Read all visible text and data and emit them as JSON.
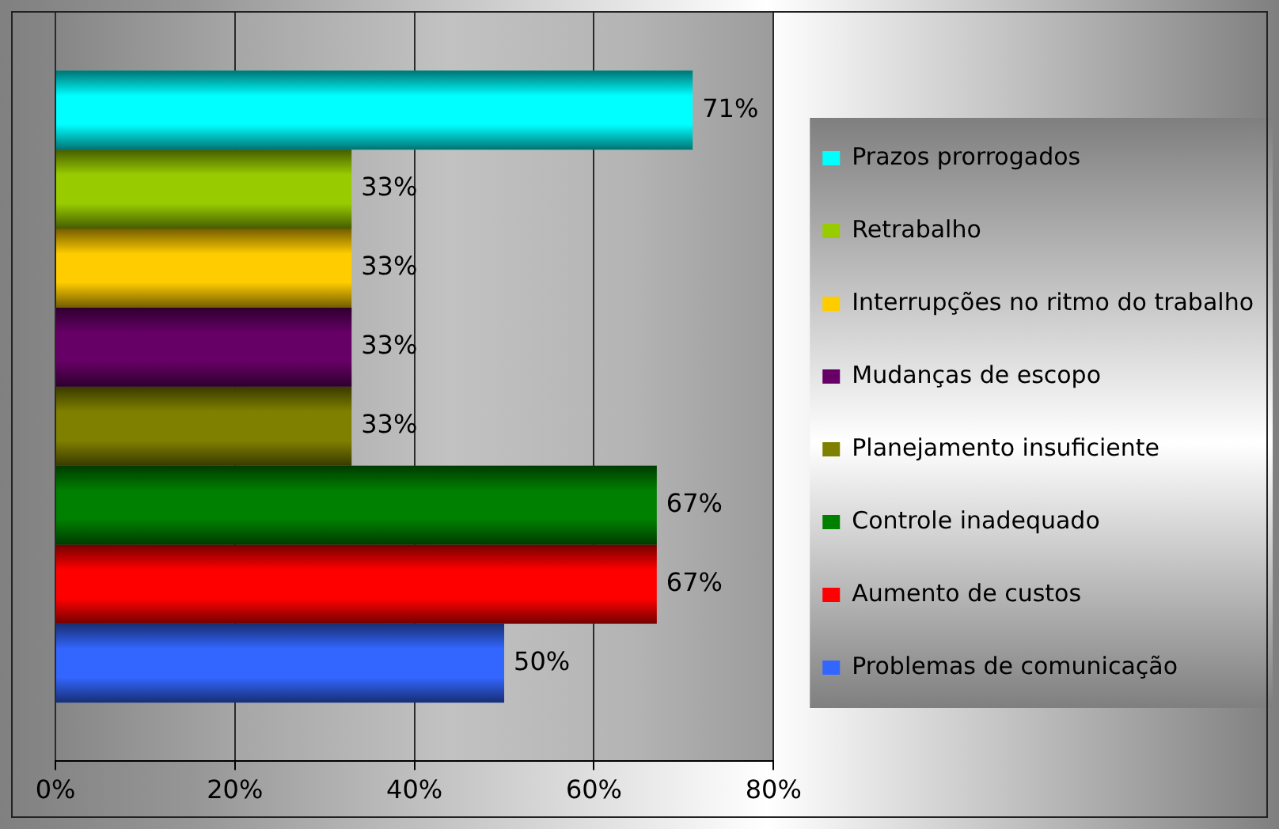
{
  "chart_data": {
    "type": "bar",
    "orientation": "horizontal",
    "categories": [
      null
    ],
    "series": [
      {
        "name": "Prazos prorrogados",
        "color": "#00ffff",
        "values": [
          71
        ],
        "value_labels": [
          "71%"
        ]
      },
      {
        "name": "Retrabalho",
        "color": "#99cc00",
        "values": [
          33
        ],
        "value_labels": [
          "33%"
        ]
      },
      {
        "name": "Interrupções no ritmo do trabalho",
        "color": "#ffcc00",
        "values": [
          33
        ],
        "value_labels": [
          "33%"
        ]
      },
      {
        "name": "Mudanças de escopo",
        "color": "#660066",
        "values": [
          33
        ],
        "value_labels": [
          "33%"
        ]
      },
      {
        "name": "Planejamento insuficiente",
        "color": "#808000",
        "values": [
          33
        ],
        "value_labels": [
          "33%"
        ]
      },
      {
        "name": "Controle inadequado",
        "color": "#008000",
        "values": [
          67
        ],
        "value_labels": [
          "67%"
        ]
      },
      {
        "name": "Aumento de custos",
        "color": "#ff0000",
        "values": [
          67
        ],
        "value_labels": [
          "67%"
        ]
      },
      {
        "name": "Problemas de comunicação",
        "color": "#3366ff",
        "values": [
          50
        ],
        "value_labels": [
          "50%"
        ]
      }
    ],
    "xlim": [
      0,
      80
    ],
    "xticks": [
      {
        "value": 0,
        "label": "0%"
      },
      {
        "value": 20,
        "label": "20%"
      },
      {
        "value": 40,
        "label": "40%"
      },
      {
        "value": 60,
        "label": "60%"
      },
      {
        "value": 80,
        "label": "80%"
      }
    ],
    "grid": "x",
    "legend": "right"
  }
}
